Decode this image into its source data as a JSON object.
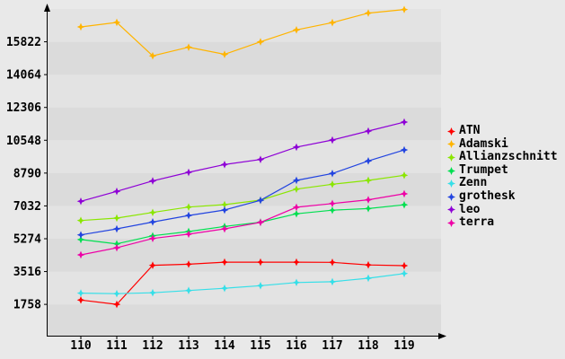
{
  "chart_data": {
    "type": "line",
    "title": "",
    "xlabel": "",
    "ylabel": "",
    "x": [
      110,
      111,
      112,
      113,
      114,
      115,
      116,
      117,
      118,
      119
    ],
    "x_tick_labels": [
      "110",
      "111",
      "112",
      "113",
      "114",
      "115",
      "116",
      "117",
      "118",
      "119"
    ],
    "y_ticks": [
      1758,
      3516,
      5274,
      7032,
      8790,
      10548,
      12306,
      14064,
      15822
    ],
    "y_tick_labels": [
      "1758",
      "3516",
      "5274",
      "7032",
      "8790",
      "10548",
      "12306",
      "14064",
      "15822"
    ],
    "ylim": [
      0,
      17580
    ],
    "xlim": [
      110,
      119
    ],
    "grid": "alternating-horizontal-bands",
    "legend_position": "right",
    "marker": "four-point-diamond",
    "series": [
      {
        "name": "ATN",
        "color": "#ff0000",
        "values": [
          1990,
          1760,
          3850,
          3910,
          4020,
          4020,
          4020,
          4010,
          3870,
          3830
        ]
      },
      {
        "name": "Adamski",
        "color": "#ffb400",
        "values": [
          16620,
          16860,
          15070,
          15530,
          15150,
          15820,
          16460,
          16850,
          17360,
          17550
        ]
      },
      {
        "name": "Allianzschnitt",
        "color": "#8ae600",
        "values": [
          6250,
          6380,
          6680,
          6970,
          7100,
          7340,
          7930,
          8190,
          8400,
          8670
        ]
      },
      {
        "name": "Trumpet",
        "color": "#00df50",
        "values": [
          5230,
          5000,
          5430,
          5660,
          5930,
          6160,
          6610,
          6800,
          6890,
          7090
        ]
      },
      {
        "name": "Zenn",
        "color": "#35dfe8",
        "values": [
          2360,
          2330,
          2380,
          2500,
          2620,
          2760,
          2930,
          2970,
          3160,
          3410
        ]
      },
      {
        "name": "grothesk",
        "color": "#2244e0",
        "values": [
          5480,
          5800,
          6170,
          6520,
          6810,
          7330,
          8400,
          8770,
          9440,
          10030
        ]
      },
      {
        "name": "leo",
        "color": "#8e00d6",
        "values": [
          7280,
          7810,
          8370,
          8830,
          9250,
          9520,
          10180,
          10560,
          11040,
          11520
        ]
      },
      {
        "name": "terra",
        "color": "#ee00a6",
        "values": [
          4410,
          4790,
          5290,
          5520,
          5800,
          6150,
          6960,
          7160,
          7360,
          7680
        ]
      }
    ]
  },
  "colors": {
    "page_bg": "#e9e9e9",
    "band_light": "#e3e3e3",
    "band_dark": "#dbdbdb",
    "axis": "#000000",
    "label": "#000000"
  }
}
